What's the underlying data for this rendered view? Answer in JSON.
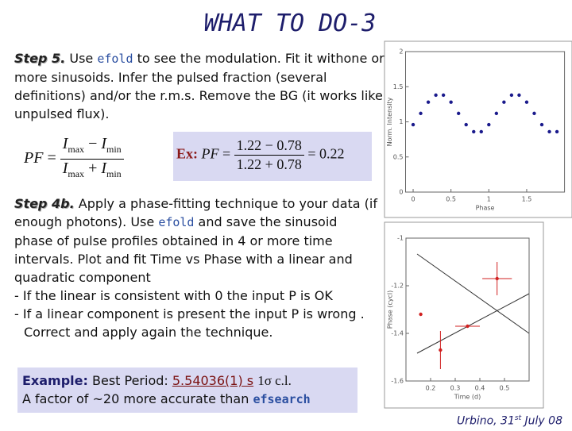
{
  "title": "WHAT TO DO-3",
  "step5": {
    "label": "Step 5.",
    "t1": " Use ",
    "cmd": "efold",
    "t2": " to see the modulation. Fit it withone or more sinusoids. Infer the  pulsed fraction (several definitions) and/or the r.m.s. Remove the BG (it works like unpulsed flux)."
  },
  "formula": {
    "lhs": "PF",
    "eq": "=",
    "var": "I",
    "sub_max": "max",
    "sub_min": "min",
    "minus": "−",
    "plus": "+"
  },
  "example_formula": {
    "label": "Ex:",
    "a": 1.22,
    "b": 0.78,
    "result": 0.22
  },
  "step4b": {
    "label": "Step 4b.",
    "t1": " Apply a phase-fitting technique to your data (if enough photons). Use ",
    "cmd": "efold",
    "t2": " and save the sinusoid phase of pulse profiles obtained in 4 or more time intervals. Plot and fit Time vs Phase with a linear and quadratic component",
    "items": [
      "- If the linear is consistent with 0 the input P is OK",
      "- If a linear component is present the input P is wrong .  Correct and apply again the technique."
    ]
  },
  "example": {
    "label": "Example:",
    "t1": " Best Period:  ",
    "period": "5.54036(1) s",
    "cl": "1σ c.l.",
    "t2": "A factor of ~20 more accurate than ",
    "cmd": "efsearch"
  },
  "footer": {
    "t1": "Urbino, 31",
    "sup": "st",
    "t2": " July 08"
  },
  "chart_data": [
    {
      "type": "scatter",
      "x_label": "Phase",
      "y_label": "Norm. Intensity",
      "color": "#1a1a8c",
      "x": [
        0,
        0.1,
        0.2,
        0.3,
        0.4,
        0.5,
        0.6,
        0.7,
        0.8,
        0.9,
        1.0,
        1.1,
        1.2,
        1.3,
        1.4,
        1.5,
        1.6,
        1.7,
        1.8,
        1.9
      ],
      "values": [
        0.96,
        1.12,
        1.28,
        1.38,
        1.38,
        1.28,
        1.12,
        0.96,
        0.86,
        0.86,
        0.96,
        1.12,
        1.28,
        1.38,
        1.38,
        1.28,
        1.12,
        0.96,
        0.86,
        0.86
      ],
      "xlim": [
        -0.1,
        2
      ],
      "ylim": [
        0,
        2
      ],
      "xticks": [
        0,
        0.5,
        1,
        1.5
      ],
      "yticks": [
        0,
        0.5,
        1,
        1.5,
        2
      ]
    },
    {
      "type": "scatter",
      "x_label": "Time (d)",
      "y_label": "Phase (cycl)",
      "color": "#d02020",
      "x": [
        0.16,
        0.24,
        0.35,
        0.47
      ],
      "values": [
        -1.32,
        -1.47,
        -1.37,
        -1.17
      ],
      "xerr": [
        0,
        0,
        0.05,
        0.06
      ],
      "yerr": [
        0,
        0.08,
        0,
        0.07
      ],
      "xlim": [
        0.1,
        0.6
      ],
      "ylim": [
        -1.6,
        -1
      ],
      "xticks": [
        0.2,
        0.3,
        0.4,
        0.5
      ],
      "yticks": [
        -1,
        -1.2,
        -1.4,
        -1.6
      ]
    }
  ]
}
